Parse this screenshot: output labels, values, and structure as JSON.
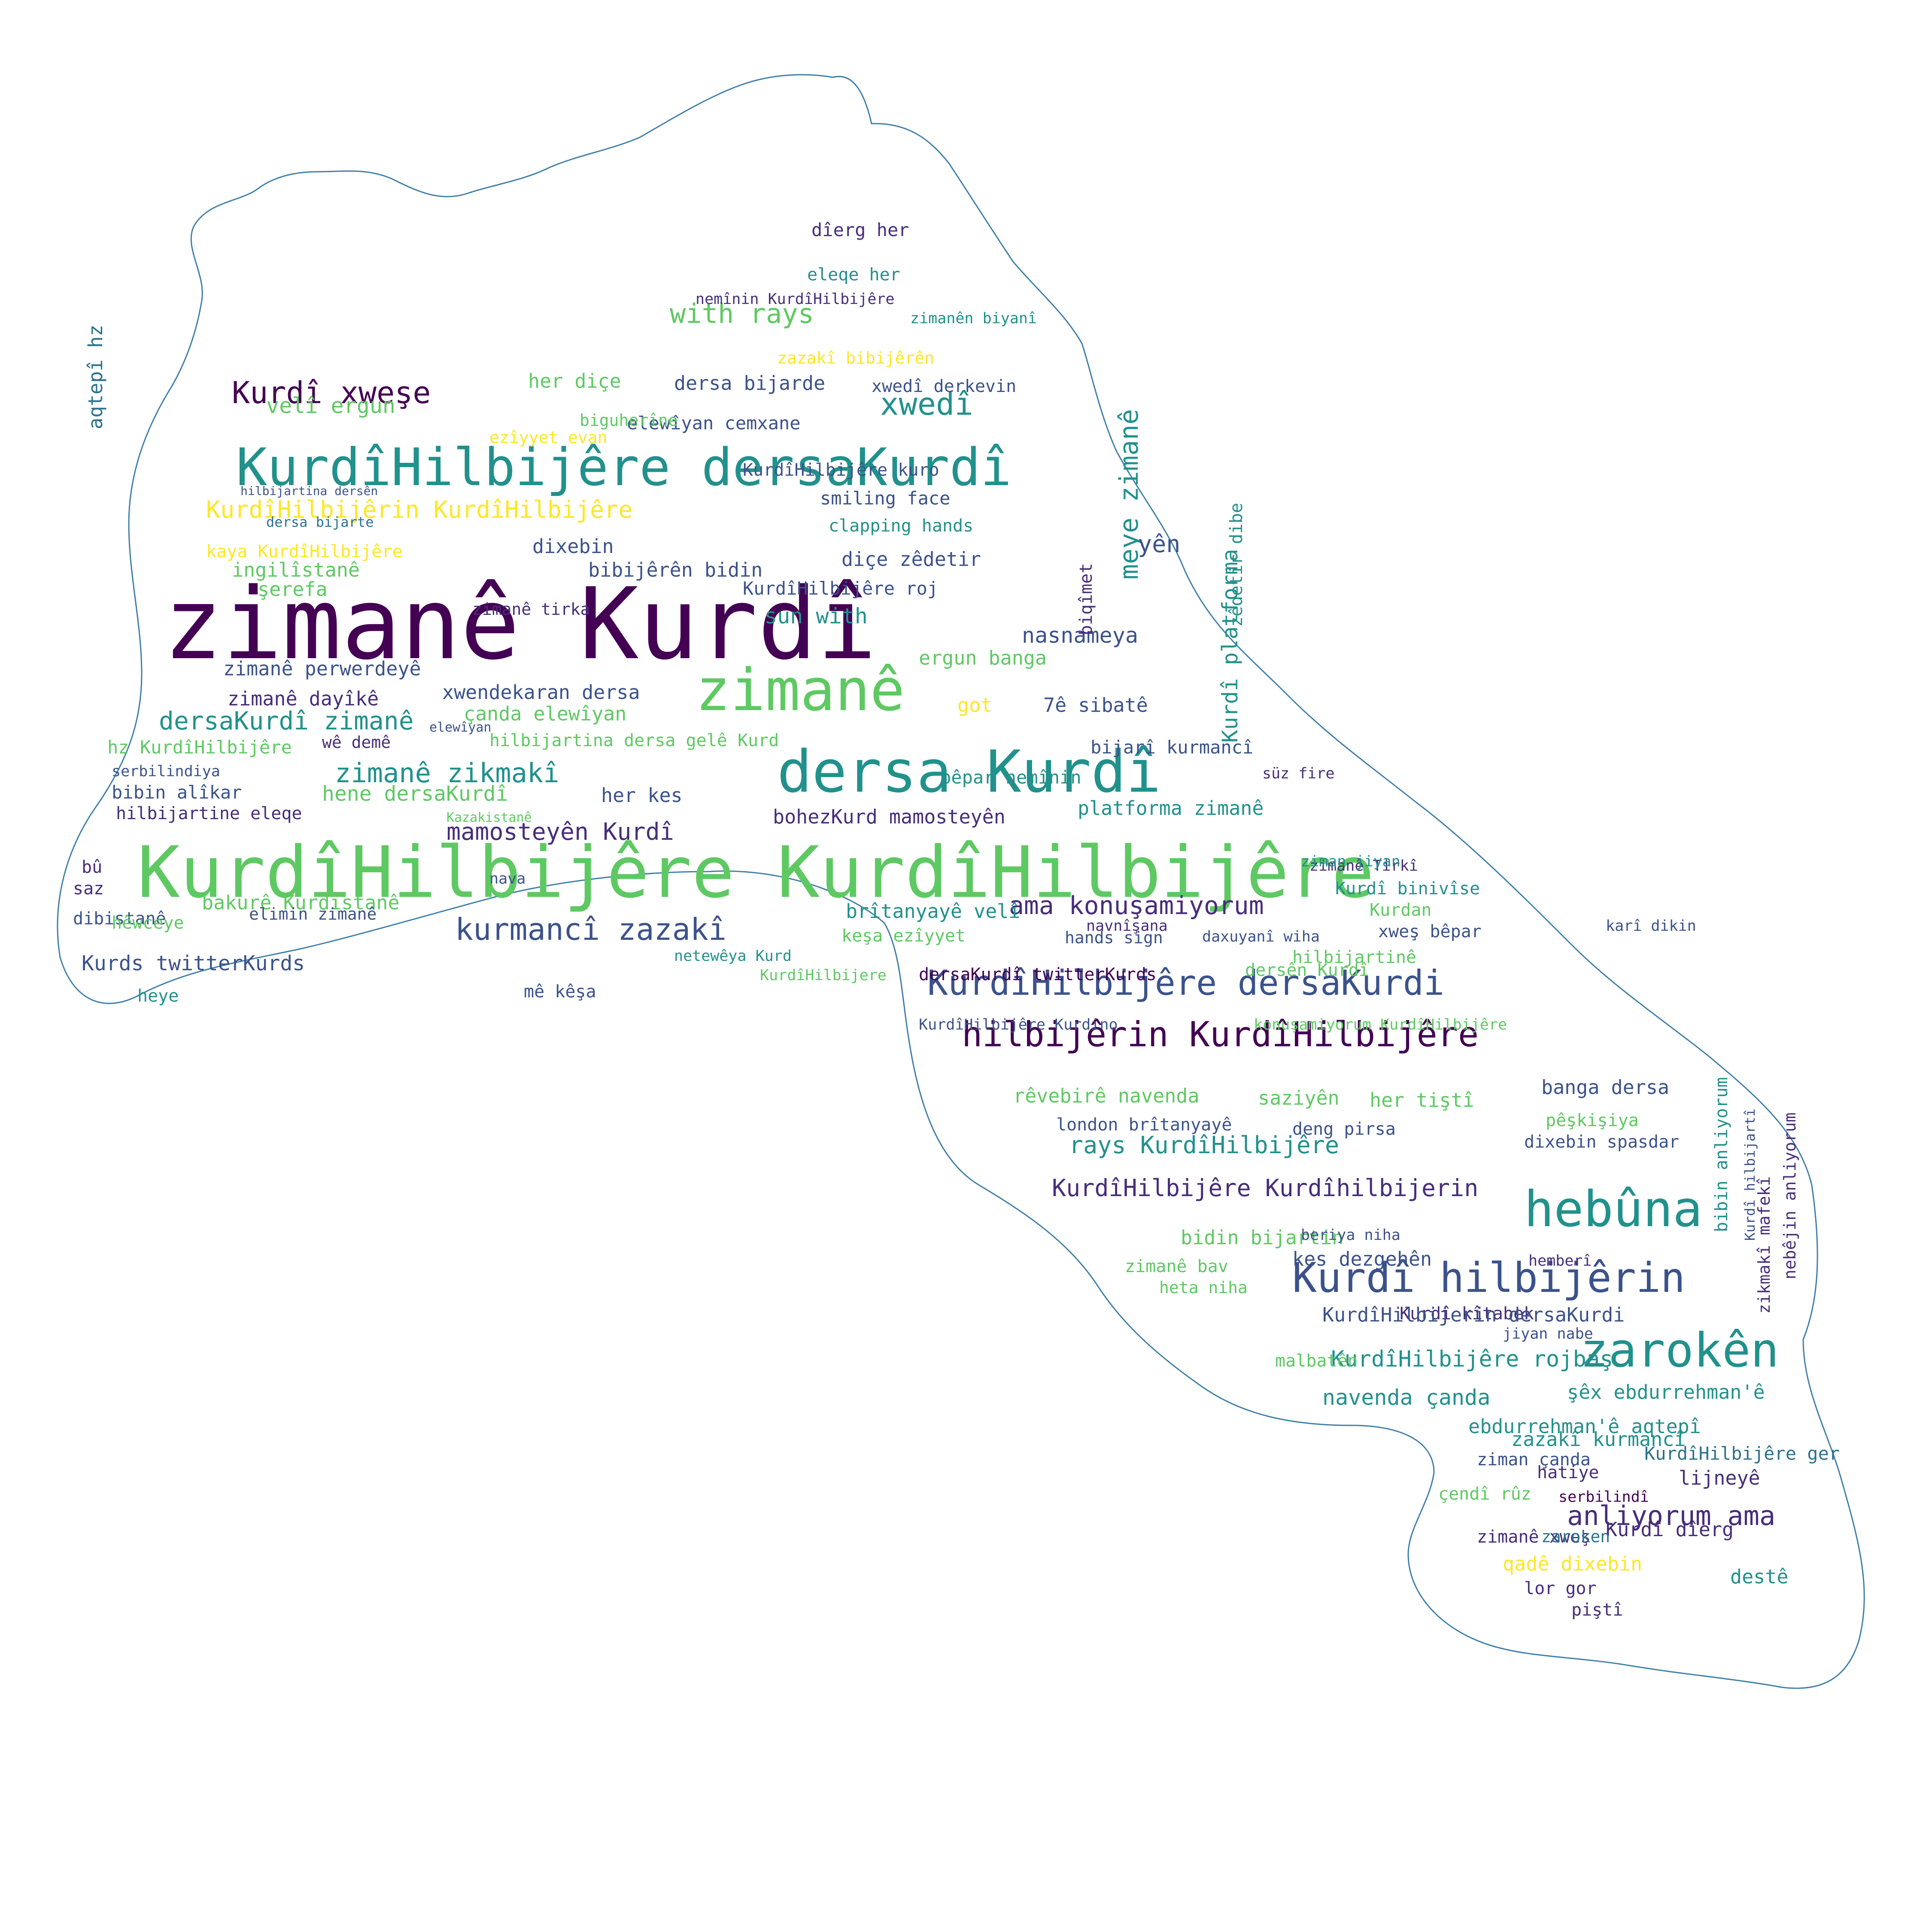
{
  "colors": {
    "outline": "#3f7fa8",
    "palette": [
      "#440154",
      "#3b528b",
      "#21918c",
      "#5ec962",
      "#fde725",
      "#2c728e",
      "#472d7b",
      "#27ad81",
      "#aadc32"
    ]
  },
  "words": [
    "zimanê Kurdî",
    "KurdîHilbijêre KurdîHilbijêre",
    "dersa Kurdî",
    "zimanê",
    "KurdîHilbijêre dersaKurdî",
    "zarokên",
    "Kurdî hilbijêrin",
    "hebûna",
    "KurdîHilbijêre dersaKurdi",
    "hilbijêrin KurdîHilbijêre",
    "Kurdî xweşe",
    "kurmancî zazakî",
    "KurdîHilbijêrin KurdîHilbijêre",
    "with rays",
    "xwedî",
    "dersaKurdî zimanê",
    "zimanê zikmakî",
    "mamosteyên Kurdî",
    "ama konuşamiyorum",
    "anliyorum ama",
    "KurdîHilbijêre Kurdîhilbijerin",
    "rays KurdîHilbijêre",
    "KurdîHilbijêre rojbaş",
    "meye zimanê",
    "Kurdî platforma",
    "sun with",
    "bohezKurd mamosteyên",
    "platforma zimanê",
    "navenda çanda",
    "ebdurrehman'ê aqtepî",
    "şêx ebdurrehman'ê",
    "dersa bijarde",
    "her diçe",
    "velî ergun",
    "smiling face",
    "clapping hands",
    "diçe zêdetir",
    "bibijêrên bidin",
    "KurdîHilbijêre roj",
    "nasnameya",
    "ergun banga",
    "7ê sibatê",
    "got",
    "ingilîstanê",
    "şerefa",
    "zimanê perwerdeyê",
    "zimanê dayîkê",
    "xwendekaran dersa",
    "çanda elewîyan",
    "hilbijartina dersa gelê Kurd",
    "hz KurdîHilbijêre",
    "bibin alîkar",
    "hilbijartine eleqe",
    "hene dersaKurdî",
    "her kes",
    "bakurê Kurdistanê",
    "elimin zimanê",
    "Kurds twitterKurds",
    "brîtanyayê velî",
    "keşa ezîyyet",
    "dersaKurdî twitterKurds",
    "dersên Kurdî",
    "KurdîHilbijêre Kurdino",
    "konuşamiyorum KurdîHilbijêre",
    "rêvebirê navenda",
    "saziyên",
    "her tiştî",
    "banga dersa",
    "pêşkişiya",
    "london brîtanyayê",
    "deng pirsa",
    "dixebin spasdar",
    "bidin bijartin",
    "beriya niha",
    "kes dezgehên",
    "zimanê bav",
    "heta niha",
    "Kurdî kîtabek",
    "KurdîHilbijerin dersaKurdi",
    "malbatên",
    "zazakî kurmancî",
    "ziman çanda",
    "lijneyê",
    "çendî rûz",
    "zimanê xweş",
    "Kurdî dîerg",
    "qadê dixebin",
    "destê",
    "lor gor",
    "piştî",
    "KurdîHilbijêre ger",
    "hatiye",
    "dîerg her",
    "eleqe her",
    "nemînin KurdîHilbijêre",
    "zimanên biyanî",
    "zazakî bibijêrên",
    "xwedî derkevin",
    "elewîyan cemxane",
    "ezîyyet evan",
    "biguherîne",
    "yên",
    "kaya KurdîHilbijêre",
    "aqtepî hz",
    "dersa bijarte",
    "hilbijartina dersên",
    "zimanê tirka",
    "wê demê",
    "saz",
    "dibistanê",
    "bû",
    "hêwceye",
    "heye",
    "serbilindiya",
    "Kazakistanê",
    "bêpar nemînin",
    "bijarî kurmancî",
    "elewîyan",
    "zêdetir dibe",
    "biqîmet",
    "dixebin",
    "KurdîHilbijêre kuro",
    "KurdîHilbijere",
    "mê kêşa",
    "netewêya Kurd",
    "nava",
    "süz fire",
    "zimanê Tirkî",
    "ziman jiyan",
    "Kurdî binivîse",
    "Kurdan",
    "xweş bêpar",
    "karî dikin",
    "hilbijartinê",
    "hands sign",
    "navnîşana",
    "daxuyanî wiha",
    "bibin anliyorum",
    "nebêjin anliyorum",
    "zikmakî mafekî",
    "Kurdî hilbijartî",
    "hemberî",
    "jiyan nabe",
    "serbilindî",
    "zaroken",
    "KurdîHilbijêre Kurdî"
  ]
}
